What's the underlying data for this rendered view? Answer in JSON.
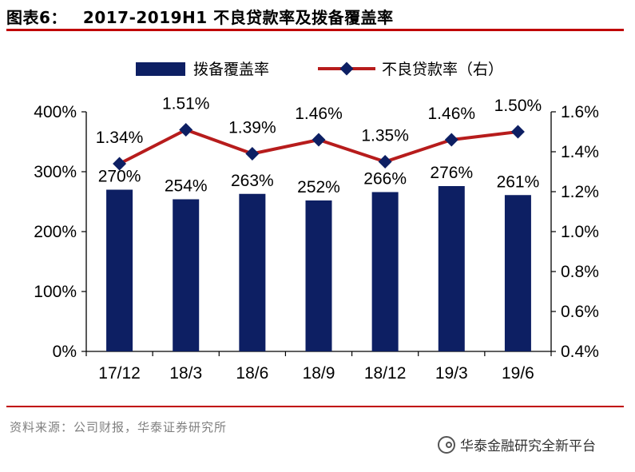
{
  "header": {
    "figure_label": "图表6：",
    "figure_title": "2017-2019H1 不良贷款率及拨备覆盖率"
  },
  "footer": {
    "source": "资料来源：公司财报，华泰证券研究所",
    "watermark": "华泰金融研究全新平台"
  },
  "colors": {
    "bar": "#0d1f63",
    "line": "#b71c1c",
    "marker": "#0d1f63",
    "rule": "#c00000"
  },
  "chart_data": {
    "type": "bar",
    "categories": [
      "17/12",
      "18/3",
      "18/6",
      "18/9",
      "18/12",
      "19/3",
      "19/6"
    ],
    "series": [
      {
        "name": "拨备覆盖率",
        "type": "bar",
        "axis": "left",
        "values": [
          270,
          254,
          263,
          252,
          266,
          276,
          261
        ],
        "labels": [
          "270%",
          "254%",
          "263%",
          "252%",
          "266%",
          "276%",
          "261%"
        ]
      },
      {
        "name": "不良贷款率（右）",
        "type": "line",
        "axis": "right",
        "values": [
          1.34,
          1.51,
          1.39,
          1.46,
          1.35,
          1.46,
          1.5
        ],
        "labels": [
          "1.34%",
          "1.51%",
          "1.39%",
          "1.46%",
          "1.35%",
          "1.46%",
          "1.50%"
        ]
      }
    ],
    "y_left": {
      "range": [
        0,
        400
      ],
      "ticks": [
        0,
        100,
        200,
        300,
        400
      ],
      "tick_labels": [
        "0%",
        "100%",
        "200%",
        "300%",
        "400%"
      ]
    },
    "y_right": {
      "range": [
        0.4,
        1.6
      ],
      "ticks": [
        0.4,
        0.6,
        0.8,
        1.0,
        1.2,
        1.4,
        1.6
      ],
      "tick_labels": [
        "0.4%",
        "0.6%",
        "0.8%",
        "1.0%",
        "1.2%",
        "1.4%",
        "1.6%"
      ]
    },
    "grid": false,
    "legend": "top"
  }
}
